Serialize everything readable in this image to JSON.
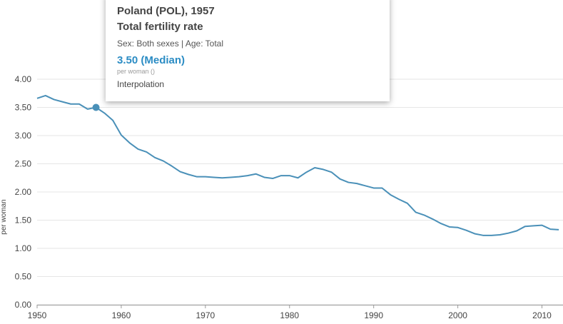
{
  "colors": {
    "line": "#4a90b8",
    "grid": "#e6e6e6",
    "axis": "#999999",
    "value_text": "#2b8cc4"
  },
  "tooltip": {
    "heading": "Poland (POL), 1957",
    "indicator": "Total fertility rate",
    "disaggregation": "Sex: Both sexes | Age: Total",
    "value": "3.50 (Median)",
    "unit": "per woman ()",
    "method": "Interpolation"
  },
  "chart_data": {
    "type": "line",
    "title": "",
    "xlabel": "",
    "ylabel": "per woman",
    "xlim": [
      1950,
      2012.5
    ],
    "ylim": [
      0,
      4
    ],
    "y_ticks": [
      "0.00",
      "0.50",
      "1.00",
      "1.50",
      "2.00",
      "2.50",
      "3.00",
      "3.50",
      "4.00"
    ],
    "x_ticks": [
      "1950",
      "1960",
      "1970",
      "1980",
      "1990",
      "2000",
      "2010"
    ],
    "grid": true,
    "highlight": {
      "x": 1957,
      "y": 3.5
    },
    "series": [
      {
        "x": [
          1950,
          1951,
          1952,
          1953,
          1954,
          1955,
          1956,
          1957,
          1958,
          1959,
          1960,
          1961,
          1962,
          1963,
          1964,
          1965,
          1966,
          1967,
          1968,
          1969,
          1970,
          1971,
          1972,
          1973,
          1974,
          1975,
          1976,
          1977,
          1978,
          1979,
          1980,
          1981,
          1982,
          1983,
          1984,
          1985,
          1986,
          1987,
          1988,
          1989,
          1990,
          1991,
          1992,
          1993,
          1994,
          1995,
          1996,
          1997,
          1998,
          1999,
          2000,
          2001,
          2002,
          2003,
          2004,
          2005,
          2006,
          2007,
          2008,
          2009,
          2010,
          2011,
          2012
        ],
        "values": [
          3.66,
          3.71,
          3.64,
          3.6,
          3.56,
          3.56,
          3.47,
          3.5,
          3.4,
          3.27,
          3.01,
          2.87,
          2.76,
          2.71,
          2.61,
          2.55,
          2.46,
          2.36,
          2.31,
          2.27,
          2.27,
          2.26,
          2.25,
          2.26,
          2.27,
          2.29,
          2.32,
          2.26,
          2.24,
          2.29,
          2.29,
          2.25,
          2.35,
          2.43,
          2.4,
          2.35,
          2.23,
          2.17,
          2.15,
          2.11,
          2.07,
          2.07,
          1.95,
          1.87,
          1.8,
          1.64,
          1.59,
          1.52,
          1.44,
          1.38,
          1.37,
          1.32,
          1.26,
          1.23,
          1.23,
          1.24,
          1.27,
          1.31,
          1.39,
          1.4,
          1.41,
          1.34,
          1.33
        ]
      }
    ]
  }
}
